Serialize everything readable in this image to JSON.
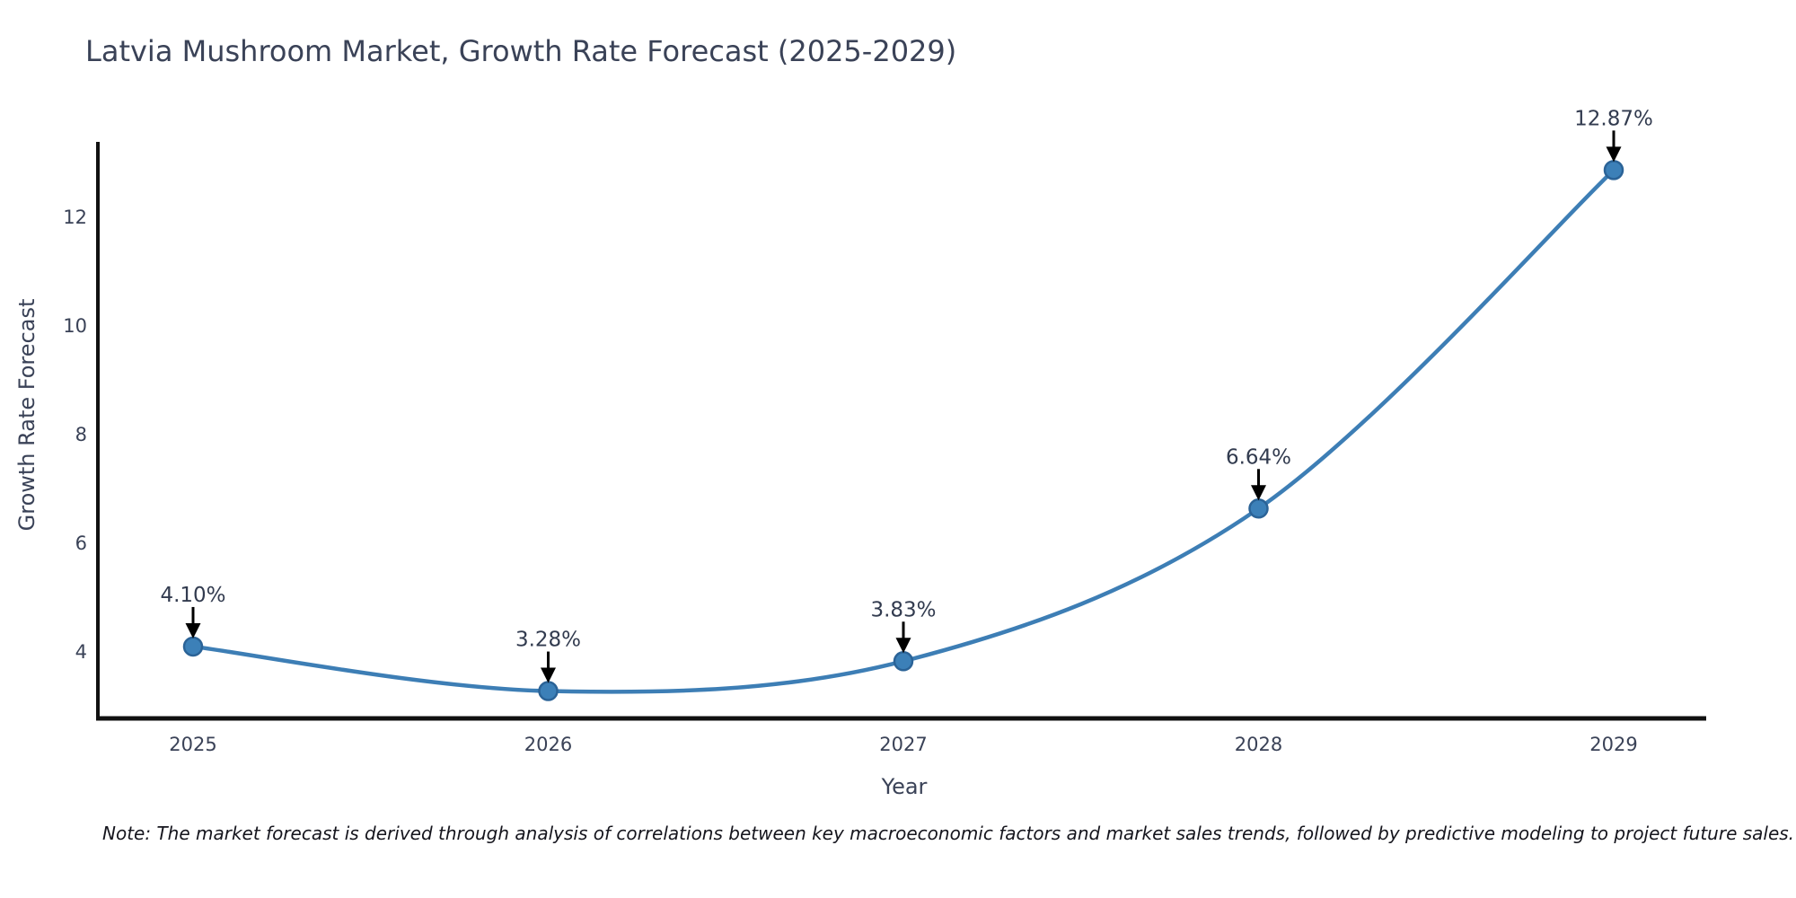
{
  "chart_data": {
    "type": "line",
    "title": "Latvia Mushroom Market, Growth Rate Forecast (2025-2029)",
    "xlabel": "Year",
    "ylabel": "Growth Rate Forecast",
    "x": [
      2025,
      2026,
      2027,
      2028,
      2029
    ],
    "values": [
      4.1,
      3.28,
      3.83,
      6.64,
      12.87
    ],
    "point_labels": [
      "4.10%",
      "3.28%",
      "3.83%",
      "6.64%",
      "12.87%"
    ],
    "yticks": [
      4,
      6,
      8,
      10,
      12
    ],
    "ylim": [
      2.8,
      13.4
    ],
    "grid": false,
    "legend": "none",
    "line_shape": "spline",
    "colors": {
      "line": "#3d7eb5",
      "marker_fill": "#3c80b8",
      "marker_edge": "#2b6397",
      "arrow": "#000000",
      "spine": "#111111",
      "text": "#3a4257"
    }
  },
  "note": "Note: The market forecast is derived through analysis of correlations between key macroeconomic factors and market sales trends, followed by predictive modeling to project future sales."
}
